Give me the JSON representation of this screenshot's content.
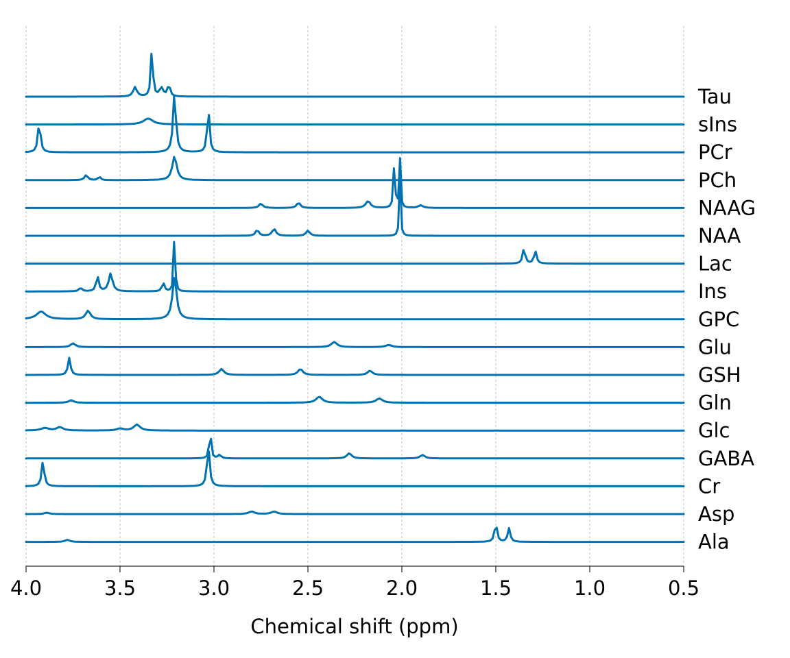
{
  "chart_data": {
    "type": "line",
    "xlabel": "Chemical shift (ppm)",
    "xlim": [
      4.0,
      0.5
    ],
    "x_axis_reversed": true,
    "xticks": [
      "4.0",
      "3.5",
      "3.0",
      "2.5",
      "2.0",
      "1.5",
      "1.0",
      "0.5"
    ],
    "grid": "vertical dotted",
    "line_color": "#0072b2",
    "series": [
      {
        "name": "Tau",
        "peaks": [
          {
            "ppm": 3.42,
            "height": 0.55,
            "width": 0.012
          },
          {
            "ppm": 3.33,
            "height": 3.0,
            "width": 0.006
          },
          {
            "ppm": 3.28,
            "height": 0.5,
            "width": 0.012
          },
          {
            "ppm": 3.24,
            "height": 0.7,
            "width": 0.008
          }
        ]
      },
      {
        "name": "sIns",
        "peaks": [
          {
            "ppm": 3.35,
            "height": 0.35,
            "width": 0.03
          }
        ]
      },
      {
        "name": "PCr",
        "peaks": [
          {
            "ppm": 3.93,
            "height": 1.8,
            "width": 0.008
          },
          {
            "ppm": 3.21,
            "height": 3.5,
            "width": 0.009
          },
          {
            "ppm": 3.03,
            "height": 2.7,
            "width": 0.007
          }
        ]
      },
      {
        "name": "PCh",
        "peaks": [
          {
            "ppm": 3.68,
            "height": 0.3,
            "width": 0.01
          },
          {
            "ppm": 3.61,
            "height": 0.2,
            "width": 0.008
          },
          {
            "ppm": 3.21,
            "height": 1.4,
            "width": 0.014
          }
        ]
      },
      {
        "name": "NAAG",
        "peaks": [
          {
            "ppm": 2.75,
            "height": 0.25,
            "width": 0.012
          },
          {
            "ppm": 2.55,
            "height": 0.3,
            "width": 0.012
          },
          {
            "ppm": 2.18,
            "height": 0.4,
            "width": 0.015
          },
          {
            "ppm": 2.04,
            "height": 2.7,
            "width": 0.005
          },
          {
            "ppm": 2.01,
            "height": 2.9,
            "width": 0.004
          },
          {
            "ppm": 1.9,
            "height": 0.15,
            "width": 0.015
          }
        ]
      },
      {
        "name": "NAA",
        "peaks": [
          {
            "ppm": 2.77,
            "height": 0.35,
            "width": 0.01
          },
          {
            "ppm": 2.68,
            "height": 0.4,
            "width": 0.012
          },
          {
            "ppm": 2.5,
            "height": 0.3,
            "width": 0.012
          },
          {
            "ppm": 2.01,
            "height": 3.6,
            "width": 0.004
          }
        ]
      },
      {
        "name": "Lac",
        "peaks": [
          {
            "ppm": 1.35,
            "height": 0.9,
            "width": 0.008
          },
          {
            "ppm": 1.29,
            "height": 0.75,
            "width": 0.008
          }
        ]
      },
      {
        "name": "Ins",
        "peaks": [
          {
            "ppm": 3.62,
            "height": 0.9,
            "width": 0.008
          },
          {
            "ppm": 3.55,
            "height": 1.05,
            "width": 0.012
          },
          {
            "ppm": 3.27,
            "height": 0.5,
            "width": 0.008
          },
          {
            "ppm": 3.21,
            "height": 4.0,
            "width": 0.004
          },
          {
            "ppm": 3.71,
            "height": 0.2,
            "width": 0.01
          }
        ]
      },
      {
        "name": "GPC",
        "peaks": [
          {
            "ppm": 3.92,
            "height": 0.45,
            "width": 0.03
          },
          {
            "ppm": 3.67,
            "height": 0.5,
            "width": 0.015
          },
          {
            "ppm": 3.21,
            "height": 2.5,
            "width": 0.013
          }
        ]
      },
      {
        "name": "Glu",
        "peaks": [
          {
            "ppm": 3.75,
            "height": 0.22,
            "width": 0.015
          },
          {
            "ppm": 2.36,
            "height": 0.3,
            "width": 0.018
          },
          {
            "ppm": 2.07,
            "height": 0.12,
            "width": 0.02
          }
        ]
      },
      {
        "name": "GSH",
        "peaks": [
          {
            "ppm": 3.77,
            "height": 1.0,
            "width": 0.008
          },
          {
            "ppm": 2.96,
            "height": 0.35,
            "width": 0.015
          },
          {
            "ppm": 2.54,
            "height": 0.35,
            "width": 0.015
          },
          {
            "ppm": 2.17,
            "height": 0.25,
            "width": 0.015
          }
        ]
      },
      {
        "name": "Gln",
        "peaks": [
          {
            "ppm": 3.76,
            "height": 0.15,
            "width": 0.015
          },
          {
            "ppm": 2.44,
            "height": 0.35,
            "width": 0.02
          },
          {
            "ppm": 2.12,
            "height": 0.25,
            "width": 0.02
          }
        ]
      },
      {
        "name": "Glc",
        "peaks": [
          {
            "ppm": 3.9,
            "height": 0.15,
            "width": 0.025
          },
          {
            "ppm": 3.82,
            "height": 0.2,
            "width": 0.02
          },
          {
            "ppm": 3.41,
            "height": 0.35,
            "width": 0.02
          },
          {
            "ppm": 3.5,
            "height": 0.12,
            "width": 0.02
          }
        ]
      },
      {
        "name": "GABA",
        "peaks": [
          {
            "ppm": 3.02,
            "height": 2.0,
            "width": 0.005
          },
          {
            "ppm": 2.97,
            "height": 0.2,
            "width": 0.01
          },
          {
            "ppm": 2.28,
            "height": 0.3,
            "width": 0.015
          },
          {
            "ppm": 1.89,
            "height": 0.2,
            "width": 0.015
          }
        ]
      },
      {
        "name": "Cr",
        "peaks": [
          {
            "ppm": 3.91,
            "height": 1.5,
            "width": 0.008
          },
          {
            "ppm": 3.03,
            "height": 2.4,
            "width": 0.008
          }
        ]
      },
      {
        "name": "Asp",
        "peaks": [
          {
            "ppm": 3.89,
            "height": 0.08,
            "width": 0.015
          },
          {
            "ppm": 2.8,
            "height": 0.15,
            "width": 0.018
          },
          {
            "ppm": 2.68,
            "height": 0.15,
            "width": 0.018
          }
        ]
      },
      {
        "name": "Ala",
        "peaks": [
          {
            "ppm": 3.78,
            "height": 0.12,
            "width": 0.015
          },
          {
            "ppm": 1.5,
            "height": 1.1,
            "width": 0.008
          },
          {
            "ppm": 1.43,
            "height": 0.8,
            "width": 0.008
          }
        ]
      }
    ]
  }
}
